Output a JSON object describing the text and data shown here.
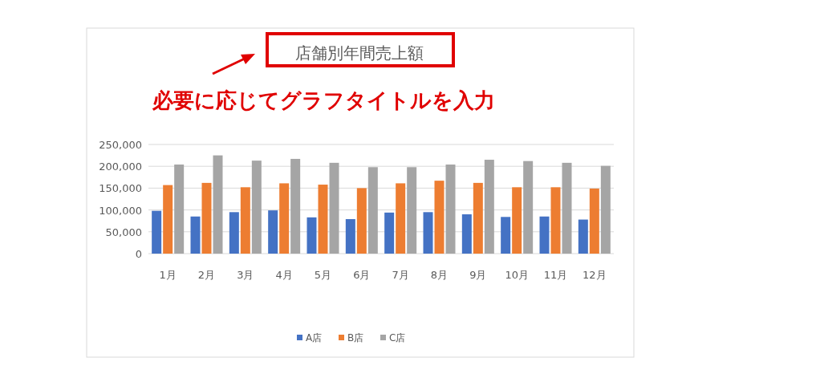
{
  "chart_data": {
    "type": "bar",
    "title": "店舗別年間売上額",
    "annotations": [
      "必要に応じてグラフタイトルを入力"
    ],
    "categories": [
      "1月",
      "2月",
      "3月",
      "4月",
      "5月",
      "6月",
      "7月",
      "8月",
      "9月",
      "10月",
      "11月",
      "12月"
    ],
    "series": [
      {
        "name": "A店",
        "color": "#4472c4",
        "values": [
          98000,
          85000,
          95000,
          99000,
          83000,
          79000,
          94000,
          95000,
          90000,
          84000,
          85000,
          78000
        ]
      },
      {
        "name": "B店",
        "color": "#ed7d31",
        "values": [
          157000,
          162000,
          152000,
          161000,
          158000,
          150000,
          161000,
          167000,
          162000,
          152000,
          152000,
          149000
        ]
      },
      {
        "name": "C店",
        "color": "#a5a5a5",
        "values": [
          204000,
          225000,
          213000,
          217000,
          208000,
          198000,
          198000,
          204000,
          215000,
          212000,
          208000,
          201000
        ]
      }
    ],
    "ylim": [
      0,
      250000
    ],
    "yticks": [
      {
        "value": 0,
        "label": "0"
      },
      {
        "value": 50000,
        "label": "50,000"
      },
      {
        "value": 100000,
        "label": "100,000"
      },
      {
        "value": 150000,
        "label": "150,000"
      },
      {
        "value": 200000,
        "label": "200,000"
      },
      {
        "value": 250000,
        "label": "250,000"
      }
    ],
    "grid": "y",
    "legend": "bottom"
  }
}
